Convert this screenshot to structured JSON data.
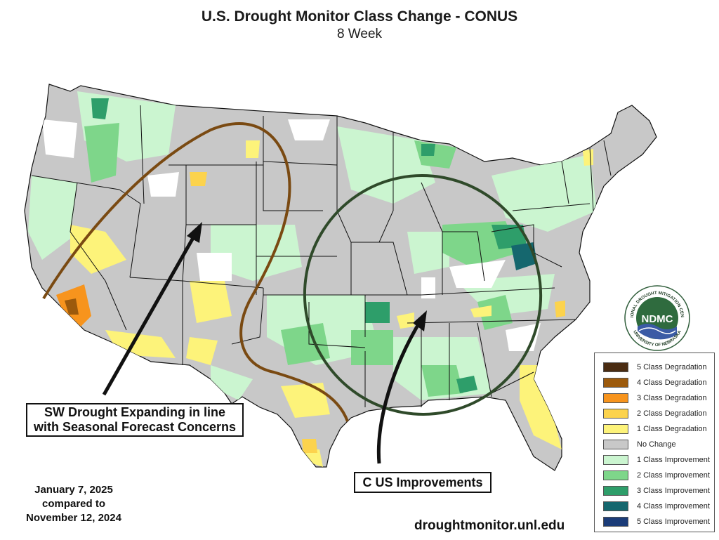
{
  "title": "U.S. Drought Monitor Class Change - CONUS",
  "subtitle": "8 Week",
  "callouts": {
    "sw_line1": "SW Drought Expanding in line",
    "sw_line2": "with Seasonal Forecast Concerns",
    "central": "C US Improvements"
  },
  "dates": {
    "line1": "January 7, 2025",
    "line2": "compared to",
    "line3": "November 12, 2024"
  },
  "source_url": "droughtmonitor.unl.edu",
  "logo": {
    "acronym": "NDMC",
    "ring_text_top": "NATIONAL DROUGHT MITIGATION CENTER",
    "ring_text_bottom": "UNIVERSITY OF NEBRASKA"
  },
  "legend": [
    {
      "label": "5 Class Degradation",
      "color": "#4a2c12"
    },
    {
      "label": "4 Class Degradation",
      "color": "#9c5a0c"
    },
    {
      "label": "3 Class Degradation",
      "color": "#f7941d"
    },
    {
      "label": "2 Class Degradation",
      "color": "#fcd34d"
    },
    {
      "label": "1 Class Degradation",
      "color": "#fdf37a"
    },
    {
      "label": "No Change",
      "color": "#c8c8c8"
    },
    {
      "label": "1 Class Improvement",
      "color": "#cbf5d0"
    },
    {
      "label": "2 Class Improvement",
      "color": "#7ed68a"
    },
    {
      "label": "3 Class Improvement",
      "color": "#2e9e6a"
    },
    {
      "label": "4 Class Improvement",
      "color": "#15676e"
    },
    {
      "label": "5 Class Improvement",
      "color": "#1b3c78"
    }
  ],
  "annotation_colors": {
    "sw_outline": "#7a4a12",
    "central_outline": "#2f4a2a",
    "arrows": "#111111"
  }
}
